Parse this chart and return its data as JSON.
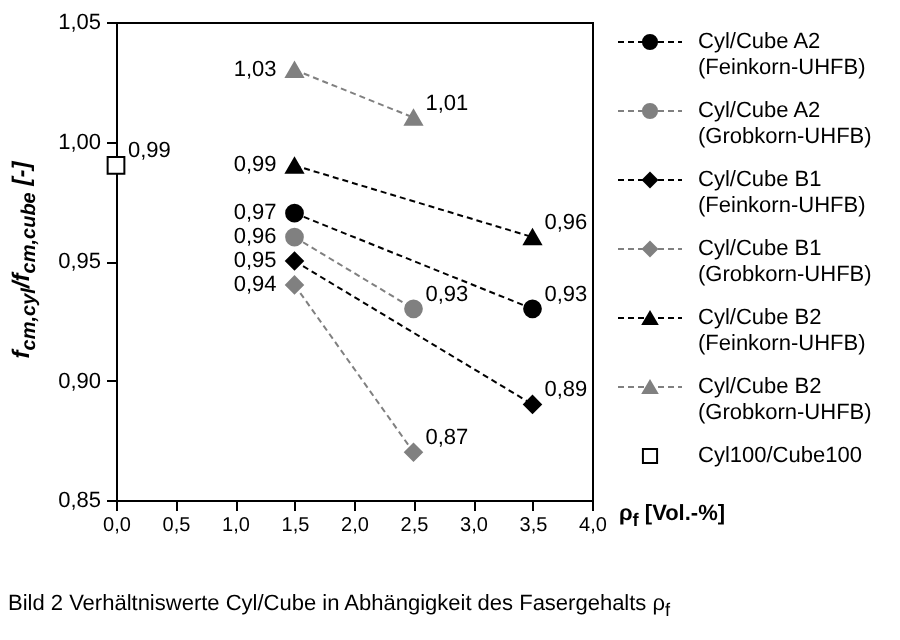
{
  "chart_data": {
    "type": "line",
    "ylabel": "f$_{cm,cyl}$/f$_{cm,cube}$ [-]",
    "xlabel": "ρ$_{f}$ [Vol.-%]",
    "annotations": [
      "Bild 2    Verhältniswerte Cyl/Cube in Abhängigkeit des Fasergehalts ρ$_{f}$"
    ],
    "xlim": [
      0,
      4
    ],
    "xticks": [
      {
        "value": 0,
        "label": "0,0"
      },
      {
        "value": 0.5,
        "label": "0,5"
      },
      {
        "value": 1,
        "label": "1,0"
      },
      {
        "value": 1.5,
        "label": "1,5"
      },
      {
        "value": 2,
        "label": "2,0"
      },
      {
        "value": 2.5,
        "label": "2,5"
      },
      {
        "value": 3,
        "label": "3,0"
      },
      {
        "value": 3.5,
        "label": "3,5"
      },
      {
        "value": 4,
        "label": "4,0"
      }
    ],
    "ylim": [
      0.85,
      1.05
    ],
    "yticks": [
      {
        "value": 0.85,
        "label": "0,85"
      },
      {
        "value": 0.9,
        "label": "0,90"
      },
      {
        "value": 0.95,
        "label": "0,95"
      },
      {
        "value": 1,
        "label": "1,00"
      },
      {
        "value": 1.05,
        "label": "1,05"
      }
    ],
    "grid": false,
    "legend": "right",
    "line_style": "dashed",
    "series": [
      {
        "name": "Cyl/Cube A2 (Feinkorn-UHFB)",
        "color": "#000000",
        "marker": "circle",
        "x": [
          1.5,
          3.5
        ],
        "values": [
          0.97,
          0.93
        ],
        "value_labels": [
          "0,97",
          "0,93"
        ]
      },
      {
        "name": "Cyl/Cube A2 (Grobkorn-UHFB)",
        "color": "#808080",
        "marker": "circle",
        "x": [
          1.5,
          2.5
        ],
        "values": [
          0.96,
          0.93
        ],
        "value_labels": [
          "0,96",
          "0,93"
        ]
      },
      {
        "name": "Cyl/Cube B1 (Feinkorn-UHFB)",
        "color": "#000000",
        "marker": "diamond",
        "x": [
          1.5,
          3.5
        ],
        "values": [
          0.95,
          0.89
        ],
        "value_labels": [
          "0,95",
          "0,89"
        ]
      },
      {
        "name": "Cyl/Cube B1 (Grobkorn-UHFB)",
        "color": "#808080",
        "marker": "diamond",
        "x": [
          1.5,
          2.5
        ],
        "values": [
          0.94,
          0.87
        ],
        "value_labels": [
          "0,94",
          "0,87"
        ]
      },
      {
        "name": "Cyl/Cube B2 (Feinkorn-UHFB)",
        "color": "#000000",
        "marker": "triangle",
        "x": [
          1.5,
          3.5
        ],
        "values": [
          0.99,
          0.96
        ],
        "value_labels": [
          "0,99",
          "0,96"
        ]
      },
      {
        "name": "Cyl/Cube B2 (Grobkorn-UHFB)",
        "color": "#808080",
        "marker": "triangle",
        "x": [
          1.5,
          2.5
        ],
        "values": [
          1.03,
          1.01
        ],
        "value_labels": [
          "1,03",
          "1,01"
        ]
      },
      {
        "name": "Cyl100/Cube100",
        "type": "scatter",
        "color": "#000000",
        "marker": "square",
        "x": [
          0
        ],
        "values": [
          0.99
        ],
        "value_labels": [
          "0,99"
        ]
      }
    ]
  }
}
